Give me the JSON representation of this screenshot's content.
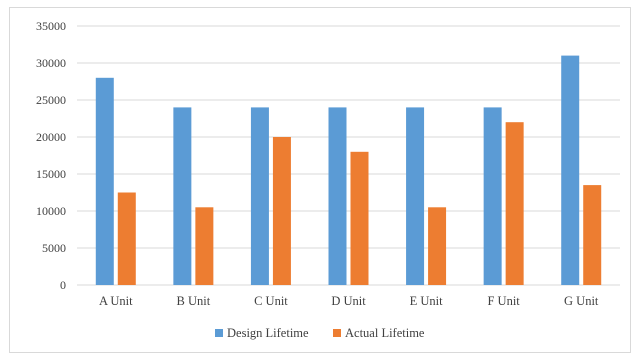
{
  "chart_data": {
    "type": "bar",
    "categories": [
      "A Unit",
      "B Unit",
      "C Unit",
      "D Unit",
      "E Unit",
      "F Unit",
      "G Unit"
    ],
    "series": [
      {
        "name": "Design Lifetime",
        "color": "#5b9bd5",
        "values": [
          28000,
          24000,
          24000,
          24000,
          24000,
          24000,
          31000
        ]
      },
      {
        "name": "Actual Lifetime",
        "color": "#ed7d31",
        "values": [
          12500,
          10500,
          20000,
          18000,
          10500,
          22000,
          13500
        ]
      }
    ],
    "title": "",
    "xlabel": "",
    "ylabel": "",
    "ylim": [
      0,
      35000
    ],
    "yticks": [
      "0",
      "5000",
      "10000",
      "15000",
      "20000",
      "25000",
      "30000",
      "35000"
    ],
    "grid": true,
    "legend_position": "bottom",
    "gridline_color": "#d9d9d9"
  }
}
